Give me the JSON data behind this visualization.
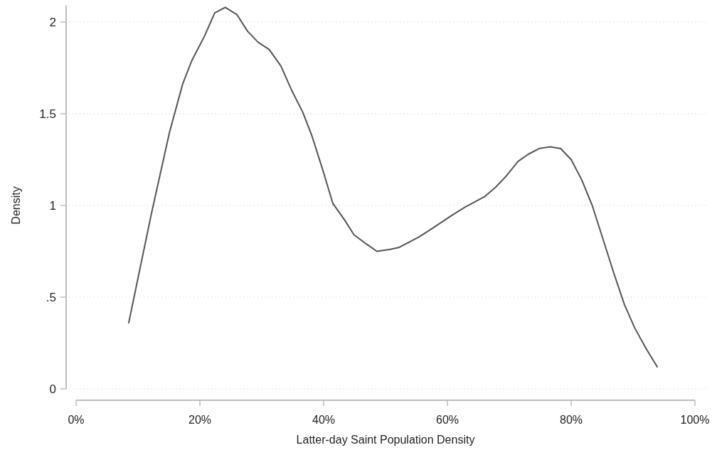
{
  "chart_data": {
    "type": "line",
    "xlabel": "Latter-day Saint Population Density",
    "ylabel": "Density",
    "xlim": [
      0,
      100
    ],
    "xticks": [
      {
        "value": 0,
        "label": "0%"
      },
      {
        "value": 20,
        "label": "20%"
      },
      {
        "value": 40,
        "label": "40%"
      },
      {
        "value": 60,
        "label": "60%"
      },
      {
        "value": 80,
        "label": "80%"
      },
      {
        "value": 100,
        "label": "100%"
      }
    ],
    "ylim": [
      0,
      2.09
    ],
    "yticks": [
      {
        "value": 0,
        "label": "0"
      },
      {
        "value": 0.5,
        "label": ".5"
      },
      {
        "value": 1,
        "label": "1"
      },
      {
        "value": 1.5,
        "label": "1.5"
      },
      {
        "value": 2,
        "label": "2"
      }
    ],
    "grid": "y",
    "marker": "none",
    "line_style": "solid",
    "series": [
      {
        "color": "#555555",
        "x": [
          8.5,
          12.2,
          15.1,
          17.2,
          18.7,
          20.7,
          22.4,
          24.1,
          26.0,
          27.7,
          29.4,
          31.2,
          33.1,
          34.8,
          36.6,
          38.1,
          39.8,
          41.5,
          43.4,
          44.9,
          46.9,
          48.6,
          50.6,
          52.1,
          55.5,
          57.8,
          60.9,
          62.8,
          66.1,
          67.8,
          69.5,
          71.4,
          73.1,
          74.8,
          76.6,
          78.3,
          80.0,
          81.7,
          83.4,
          85.2,
          86.9,
          88.6,
          90.3,
          92.1,
          93.9
        ],
        "values": [
          0.36,
          0.96,
          1.4,
          1.66,
          1.79,
          1.92,
          2.05,
          2.08,
          2.04,
          1.95,
          1.89,
          1.85,
          1.76,
          1.63,
          1.51,
          1.38,
          1.2,
          1.01,
          0.92,
          0.84,
          0.79,
          0.75,
          0.76,
          0.77,
          0.83,
          0.88,
          0.95,
          0.99,
          1.05,
          1.1,
          1.16,
          1.24,
          1.28,
          1.31,
          1.32,
          1.31,
          1.25,
          1.14,
          1.0,
          0.81,
          0.63,
          0.46,
          0.33,
          0.22,
          0.12
        ]
      }
    ]
  }
}
